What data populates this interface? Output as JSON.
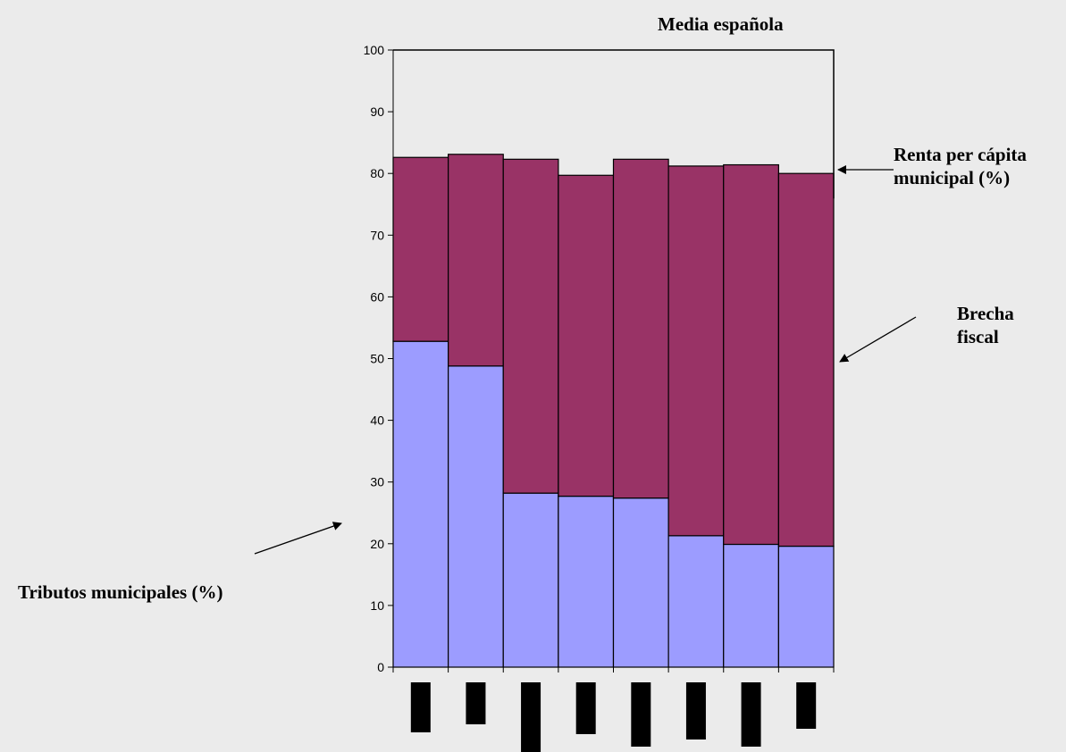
{
  "chart_data": {
    "type": "bar",
    "stacked": true,
    "categories": [
      "",
      "",
      "",
      "",
      "",
      "",
      "",
      ""
    ],
    "series": [
      {
        "values": [
          52.8,
          48.8,
          28.2,
          27.7,
          27.4,
          21.3,
          19.9,
          19.6
        ]
      },
      {
        "values": [
          29.8,
          34.3,
          54.1,
          52.0,
          54.9,
          59.9,
          61.5,
          60.4
        ]
      }
    ],
    "totals": [
      82.6,
      83.1,
      82.3,
      79.7,
      82.3,
      81.2,
      81.4,
      80.0
    ],
    "ylim": [
      0,
      100
    ],
    "yticks": [
      "0",
      "10",
      "20",
      "30",
      "40",
      "50",
      "60",
      "70",
      "80",
      "90",
      "100"
    ],
    "grid": false,
    "annotations": {
      "media": "Media española",
      "renta_line1": "Renta per cápita",
      "renta_line2": "municipal (%)",
      "brecha_line1": "Brecha",
      "brecha_line2": "fiscal",
      "tributos": "Tributos municipales (%)"
    },
    "colors": {
      "lower": "#9c9cff",
      "upper": "#993366",
      "axis": "#000000",
      "background": "#ebebeb",
      "redacted_label": "#000000"
    }
  }
}
